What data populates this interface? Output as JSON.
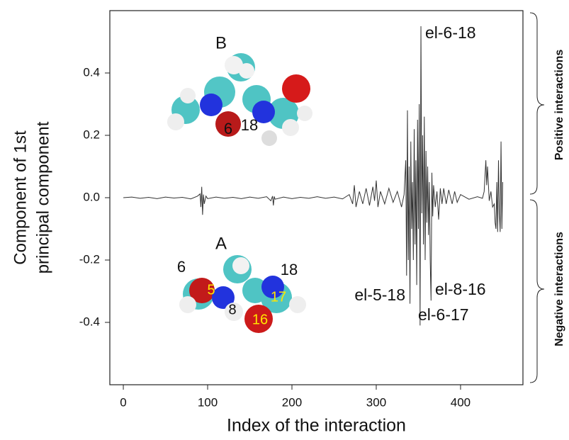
{
  "chart_data": {
    "type": "line",
    "xlabel": "Index of the interaction",
    "ylabel": [
      "Component of 1st",
      "principal component"
    ],
    "x": [
      0,
      10,
      20,
      30,
      40,
      50,
      60,
      70,
      80,
      88,
      91,
      92,
      93,
      94,
      95,
      96,
      98,
      100,
      110,
      120,
      130,
      140,
      150,
      160,
      170,
      175,
      177,
      178,
      179,
      180,
      190,
      200,
      210,
      220,
      230,
      240,
      250,
      260,
      268,
      272,
      274,
      276,
      280,
      284,
      288,
      292,
      296,
      298,
      300,
      302,
      305,
      310,
      315,
      320,
      325,
      330,
      333,
      335,
      336,
      337,
      338,
      339,
      340,
      341,
      342,
      343,
      344,
      345,
      346,
      347,
      348,
      349,
      350,
      351,
      352,
      353,
      354,
      355,
      356,
      357,
      358,
      359,
      360,
      361,
      362,
      363,
      364,
      365,
      366,
      367,
      368,
      370,
      372,
      374,
      376,
      378,
      380,
      383,
      386,
      390,
      393,
      396,
      400,
      410,
      420,
      426,
      428,
      430,
      431,
      432,
      434,
      436,
      438,
      440,
      441,
      442,
      443,
      444,
      445,
      446,
      447,
      448,
      449,
      450
    ],
    "values": [
      0,
      0.002,
      -0.002,
      0.001,
      -0.003,
      0.002,
      -0.001,
      0.001,
      -0.004,
      0.005,
      0.012,
      -0.03,
      0.035,
      -0.055,
      0.01,
      -0.02,
      0.005,
      -0.003,
      0.002,
      -0.002,
      0.001,
      -0.003,
      0.002,
      -0.002,
      0.003,
      -0.01,
      0.005,
      -0.025,
      0.004,
      -0.005,
      0.002,
      -0.003,
      0.001,
      -0.002,
      0.003,
      -0.002,
      0.002,
      -0.004,
      0.01,
      -0.02,
      0.04,
      -0.03,
      0.02,
      -0.02,
      0.03,
      -0.025,
      0.035,
      -0.01,
      0.055,
      -0.03,
      0.02,
      -0.02,
      0.03,
      -0.015,
      0.02,
      -0.03,
      0.01,
      0.12,
      -0.25,
      0.28,
      -0.2,
      0.1,
      -0.34,
      0.18,
      -0.1,
      0.05,
      -0.2,
      0.22,
      -0.15,
      0.12,
      -0.28,
      0.25,
      -0.1,
      0.3,
      -0.41,
      0.55,
      -0.05,
      0.2,
      -0.15,
      0.26,
      -0.2,
      0.15,
      -0.08,
      0.1,
      -0.12,
      0.05,
      -0.2,
      -0.33,
      0.08,
      -0.06,
      0.04,
      -0.03,
      0.02,
      -0.07,
      0.03,
      -0.02,
      0.03,
      -0.02,
      0.025,
      -0.02,
      0.02,
      -0.015,
      0.01,
      -0.005,
      0.003,
      -0.002,
      0.02,
      0.12,
      0.04,
      0.1,
      -0.01,
      0.02,
      -0.03,
      -0.02,
      -0.08,
      -0.1,
      0.05,
      -0.11,
      0.12,
      -0.05,
      -0.11,
      0.18,
      -0.1,
      0.05
    ],
    "xlim": [
      -16,
      474
    ],
    "ylim": [
      -0.6,
      0.6
    ],
    "xticks": [
      0,
      100,
      200,
      300,
      400
    ],
    "yticks": [
      0.4,
      0.2,
      {
        "value": 0,
        "label": "0.0"
      },
      -0.2,
      -0.4
    ],
    "color": "#333333",
    "annotations": [
      "el-6-18",
      "el-5-18",
      "el-6-17",
      "el-8-16"
    ],
    "molecules": [
      {
        "name": "B",
        "atom_labels": [
          "6",
          "18"
        ]
      },
      {
        "name": "A",
        "atom_labels": [
          "6",
          "18",
          "5",
          "17",
          "8",
          "16"
        ]
      }
    ],
    "brace_labels": [
      "Positive interactions",
      "Negative interactions"
    ]
  }
}
